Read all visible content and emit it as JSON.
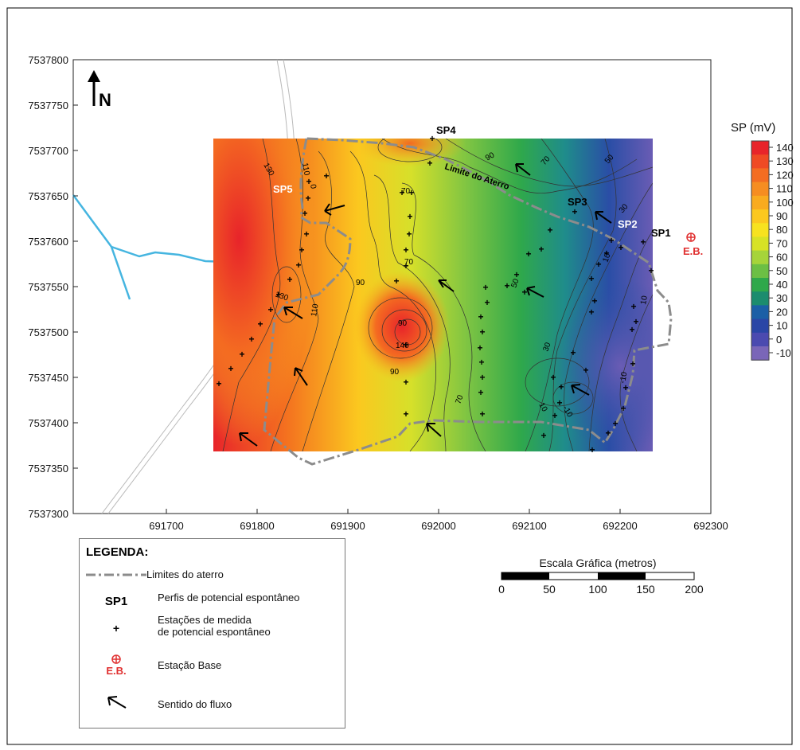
{
  "map": {
    "x_ticks": [
      "691700",
      "691800",
      "691900",
      "692000",
      "692100",
      "692200",
      "692300"
    ],
    "y_ticks": [
      "7537800",
      "7537750",
      "7537700",
      "7537650",
      "7537600",
      "7537550",
      "7537500",
      "7537450",
      "7537400",
      "7537350",
      "7537300"
    ],
    "north_label": "N",
    "landfill_label": "Limite do Aterro",
    "profiles": [
      "SP1",
      "SP2",
      "SP3",
      "SP4",
      "SP5"
    ],
    "base_station_label": "E.B.",
    "contour_labels": [
      "130",
      "110",
      "0",
      "90",
      "70",
      "50",
      "30",
      "70",
      "50",
      "10",
      "70",
      "90",
      "130",
      "110",
      "90",
      "70",
      "30",
      "10",
      "-10",
      "10",
      "-10",
      "90",
      "140"
    ]
  },
  "colorbar": {
    "title": "SP (mV)",
    "ticks": [
      "140",
      "130",
      "120",
      "110",
      "100",
      "90",
      "80",
      "70",
      "60",
      "50",
      "40",
      "30",
      "20",
      "10",
      "0",
      "-10"
    ],
    "colors": [
      "#e8242a",
      "#ef4a24",
      "#f36d22",
      "#f68d21",
      "#f9ab1f",
      "#fbc81f",
      "#f7e21f",
      "#d7e225",
      "#a6d43a",
      "#6cbf44",
      "#2fa84b",
      "#1c8c6e",
      "#1b5fa6",
      "#2a46a6",
      "#4b4ab0",
      "#7a66b8"
    ]
  },
  "legend": {
    "title": "LEGENDA:",
    "items": [
      {
        "label": "Limites do aterro"
      },
      {
        "symbol": "SP1",
        "label": "Perfis de potencial espontâneo"
      },
      {
        "label_line1": "Estações de medida",
        "label_line2": "de potencial espontâneo"
      },
      {
        "symbol": "E.B.",
        "label": "Estação Base"
      },
      {
        "label": "Sentido do fluxo"
      }
    ]
  },
  "scale": {
    "title": "Escala Gráfica (metros)",
    "labels": [
      "0",
      "50",
      "100",
      "150",
      "200"
    ]
  }
}
